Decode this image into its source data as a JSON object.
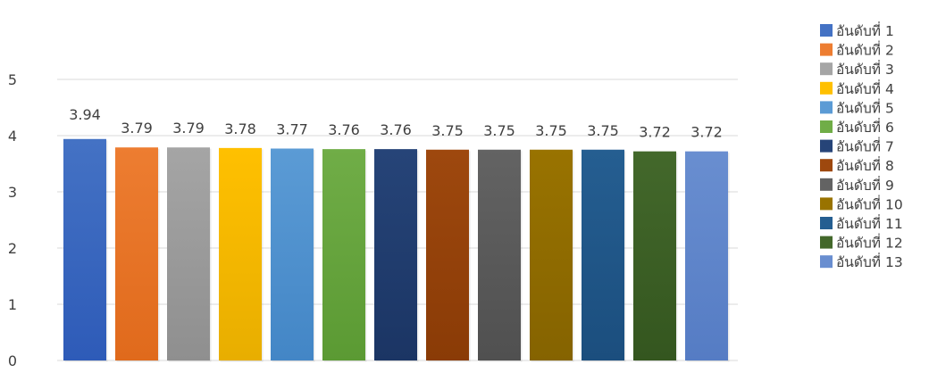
{
  "chart_data": {
    "type": "bar",
    "title": "",
    "xlabel": "",
    "ylabel": "",
    "ylim": [
      0,
      5
    ],
    "yticks": [
      0,
      1,
      2,
      3,
      4,
      5
    ],
    "grid": "horizontal",
    "legend_position": "right",
    "categories": [
      "อันดับที่ 1"
    ],
    "series": [
      {
        "name": "อันดับที่ 1",
        "values": [
          3.94
        ],
        "label": "3.94",
        "color": "#4472C4",
        "color_dark": "#2E5BB8"
      },
      {
        "name": "อันดับที่ 2",
        "values": [
          3.79
        ],
        "label": "3.79",
        "color": "#ED7D31",
        "color_dark": "#E06A1C"
      },
      {
        "name": "อันดับที่ 3",
        "values": [
          3.79
        ],
        "label": "3.79",
        "color": "#A5A5A5",
        "color_dark": "#8F8F8F"
      },
      {
        "name": "อันดับที่ 4",
        "values": [
          3.78
        ],
        "label": "3.78",
        "color": "#FFC000",
        "color_dark": "#E8AE00"
      },
      {
        "name": "อันดับที่ 5",
        "values": [
          3.77
        ],
        "label": "3.77",
        "color": "#5B9BD5",
        "color_dark": "#4386C6"
      },
      {
        "name": "อันดับที่ 6",
        "values": [
          3.76
        ],
        "label": "3.76",
        "color": "#70AD47",
        "color_dark": "#5B9A33"
      },
      {
        "name": "อันดับที่ 7",
        "values": [
          3.76
        ],
        "label": "3.76",
        "color": "#264478",
        "color_dark": "#1B3564"
      },
      {
        "name": "อันดับที่ 8",
        "values": [
          3.75
        ],
        "label": "3.75",
        "color": "#9E480E",
        "color_dark": "#8A3B06"
      },
      {
        "name": "อันดับที่ 9",
        "values": [
          3.75
        ],
        "label": "3.75",
        "color": "#636363",
        "color_dark": "#505050"
      },
      {
        "name": "อันดับที่ 10",
        "values": [
          3.75
        ],
        "label": "3.75",
        "color": "#997300",
        "color_dark": "#856300"
      },
      {
        "name": "อันดับที่ 11",
        "values": [
          3.75
        ],
        "label": "3.75",
        "color": "#255E91",
        "color_dark": "#1B4E7E"
      },
      {
        "name": "อันดับที่ 12",
        "values": [
          3.72
        ],
        "label": "3.72",
        "color": "#43682B",
        "color_dark": "#34561F"
      },
      {
        "name": "อันดับที่ 13",
        "values": [
          3.72
        ],
        "label": "3.72",
        "color": "#698ED0",
        "color_dark": "#557CC4"
      }
    ]
  }
}
